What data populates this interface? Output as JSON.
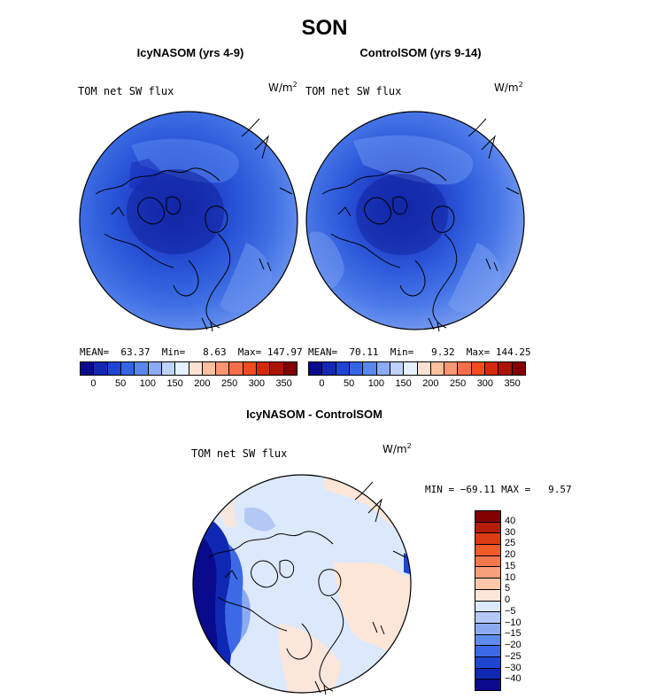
{
  "title": "SON",
  "panel_left": {
    "subtitle": "IcyNASOM (yrs 4-9)",
    "var": "TOM net SW flux",
    "units_base": "W/m",
    "units_exp": "2",
    "stats": "MEAN=  63.37  Min=   8.63  Max= 147.97"
  },
  "panel_right": {
    "subtitle": "ControlSOM (yrs 9-14)",
    "var": "TOM net SW flux",
    "units_base": "W/m",
    "units_exp": "2",
    "stats": "MEAN=  70.11  Min=   9.32  Max= 144.25"
  },
  "panel_diff": {
    "subtitle": "IcyNASOM - ControlSOM",
    "var": "TOM net SW flux",
    "units_base": "W/m",
    "units_exp": "2",
    "stats": "MIN = −69.11 MAX =   9.57"
  },
  "colorbar_top": {
    "labels": [
      "0",
      "50",
      "100",
      "150",
      "200",
      "250",
      "300",
      "350"
    ],
    "colors": [
      "#0a0a8c",
      "#1428b4",
      "#1e46d2",
      "#3264e6",
      "#5a87ee",
      "#8caaf5",
      "#bed2fa",
      "#e6f0ff",
      "#fde2d2",
      "#fcbfa0",
      "#fa9670",
      "#f86e46",
      "#f04a1e",
      "#d22a0a",
      "#aa1405",
      "#820000"
    ]
  },
  "colorbar_diff": {
    "labels": [
      "40",
      "30",
      "25",
      "20",
      "15",
      "10",
      "5",
      "0",
      "−5",
      "−10",
      "−15",
      "−20",
      "−25",
      "−30",
      "−40"
    ],
    "colors": [
      "#820000",
      "#b41e0a",
      "#dc3c14",
      "#f05a28",
      "#f57850",
      "#f8a07c",
      "#fbc8aa",
      "#fde6d7",
      "#dce8fb",
      "#b4c8f5",
      "#8caaf0",
      "#5f8cec",
      "#3c6ae6",
      "#1e46d2",
      "#0f28b4",
      "#0a0a8c"
    ]
  }
}
